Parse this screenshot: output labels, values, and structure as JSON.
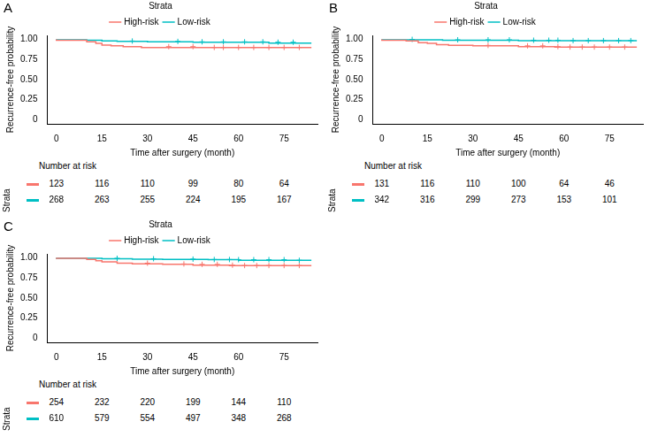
{
  "chart_data": [
    {
      "type": "line",
      "title": "A",
      "x_label": "Time after surgery (month)",
      "y_label": "Recurrence-free probability",
      "legend_title": "Strata",
      "legend": "top",
      "grid": false,
      "xlim": [
        -3,
        86
      ],
      "xticks": [
        0,
        15,
        30,
        45,
        60,
        75
      ],
      "ylim": [
        -0.05,
        1.05
      ],
      "yticks": [
        0,
        0.25,
        {
          "value": 0.5,
          "label": "0.50"
        },
        0.75,
        {
          "value": 1,
          "label": "1.00"
        }
      ],
      "series": [
        {
          "name": "High-risk",
          "color": "#F8766D",
          "line_style": "step",
          "marker": "cross",
          "x": [
            0,
            10,
            13,
            15,
            18,
            22,
            28,
            50,
            84
          ],
          "values": [
            1,
            0.99,
            0.97,
            0.95,
            0.93,
            0.92,
            0.91,
            0.9,
            0.9
          ],
          "censored": [
            37,
            45,
            52,
            55,
            60,
            65,
            70,
            75,
            80
          ]
        },
        {
          "name": "Low-risk",
          "color": "#00BFC4",
          "line_style": "step",
          "marker": "cross",
          "x": [
            0,
            10,
            15,
            20,
            30,
            45,
            70,
            80,
            84
          ],
          "values": [
            1,
            0.995,
            0.99,
            0.98,
            0.975,
            0.97,
            0.965,
            0.955,
            0.955
          ],
          "censored": [
            25,
            40,
            48,
            55,
            62,
            68,
            73,
            78
          ]
        }
      ],
      "risk_table": {
        "title": "Number at risk",
        "row_title": "Strata",
        "x": [
          0,
          15,
          30,
          45,
          60,
          75
        ],
        "rows": [
          {
            "name": "High-risk",
            "color": "#F8766D",
            "values": [
              123,
              116,
              110,
              99,
              80,
              64
            ]
          },
          {
            "name": "Low-risk",
            "color": "#00BFC4",
            "values": [
              268,
              263,
              255,
              224,
              195,
              167
            ]
          }
        ]
      }
    },
    {
      "type": "line",
      "title": "B",
      "x_label": "Time after surgery (month)",
      "y_label": "Recurrence-free probability",
      "legend_title": "Strata",
      "legend": "top",
      "grid": false,
      "xlim": [
        -3,
        86
      ],
      "xticks": [
        0,
        15,
        30,
        45,
        60,
        75
      ],
      "ylim": [
        -0.05,
        1.05
      ],
      "yticks": [
        0,
        0.25,
        {
          "value": 0.5,
          "label": "0.50"
        },
        0.75,
        {
          "value": 1,
          "label": "1.00"
        }
      ],
      "series": [
        {
          "name": "High-risk",
          "color": "#F8766D",
          "line_style": "step",
          "marker": "cross",
          "x": [
            0,
            8,
            12,
            15,
            18,
            22,
            30,
            45,
            57,
            60,
            84
          ],
          "values": [
            1,
            0.99,
            0.98,
            0.96,
            0.95,
            0.935,
            0.925,
            0.92,
            0.91,
            0.905,
            0.905
          ],
          "censored": [
            35,
            48,
            53,
            58,
            62,
            66,
            70,
            75,
            80
          ]
        },
        {
          "name": "Low-risk",
          "color": "#00BFC4",
          "line_style": "step",
          "marker": "cross",
          "x": [
            0,
            20,
            45,
            60,
            84
          ],
          "values": [
            1,
            0.995,
            0.99,
            0.985,
            0.985
          ],
          "censored": [
            10,
            25,
            35,
            42,
            50,
            55,
            58,
            63,
            68,
            73,
            78,
            82
          ]
        }
      ],
      "risk_table": {
        "title": "Number at risk",
        "row_title": "Strata",
        "x": [
          0,
          15,
          30,
          45,
          60,
          75
        ],
        "rows": [
          {
            "name": "High-risk",
            "color": "#F8766D",
            "values": [
              131,
              116,
              110,
              100,
              64,
              46
            ]
          },
          {
            "name": "Low-risk",
            "color": "#00BFC4",
            "values": [
              342,
              316,
              299,
              273,
              153,
              101
            ]
          }
        ]
      }
    },
    {
      "type": "line",
      "title": "C",
      "x_label": "Time after surgery (month)",
      "y_label": "Recurrence-free probability",
      "legend_title": "Strata",
      "legend": "top",
      "grid": false,
      "xlim": [
        -3,
        86
      ],
      "xticks": [
        0,
        15,
        30,
        45,
        60,
        75
      ],
      "ylim": [
        -0.05,
        1.05
      ],
      "yticks": [
        0,
        0.25,
        {
          "value": 0.5,
          "label": "0.50"
        },
        0.75,
        {
          "value": 1,
          "label": "1.00"
        }
      ],
      "series": [
        {
          "name": "High-risk",
          "color": "#F8766D",
          "line_style": "step",
          "marker": "cross",
          "x": [
            0,
            10,
            13,
            15,
            20,
            25,
            35,
            45,
            57,
            60,
            84
          ],
          "values": [
            1,
            0.995,
            0.98,
            0.965,
            0.95,
            0.935,
            0.925,
            0.92,
            0.91,
            0.905,
            0.905
          ],
          "censored": [
            30,
            42,
            48,
            53,
            58,
            62,
            66,
            70,
            75,
            80
          ]
        },
        {
          "name": "Low-risk",
          "color": "#00BFC4",
          "line_style": "step",
          "marker": "cross",
          "x": [
            0,
            15,
            25,
            35,
            50,
            60,
            80,
            84
          ],
          "values": [
            1,
            0.995,
            0.99,
            0.985,
            0.98,
            0.978,
            0.97,
            0.97
          ],
          "censored": [
            20,
            32,
            45,
            52,
            57,
            60,
            65,
            70,
            75,
            80
          ]
        }
      ],
      "risk_table": {
        "title": "Number at risk",
        "row_title": "Strata",
        "x": [
          0,
          15,
          30,
          45,
          60,
          75
        ],
        "rows": [
          {
            "name": "High-risk",
            "color": "#F8766D",
            "values": [
              254,
              232,
              220,
              199,
              144,
              110
            ]
          },
          {
            "name": "Low-risk",
            "color": "#00BFC4",
            "values": [
              610,
              579,
              554,
              497,
              348,
              268
            ]
          }
        ]
      }
    }
  ]
}
